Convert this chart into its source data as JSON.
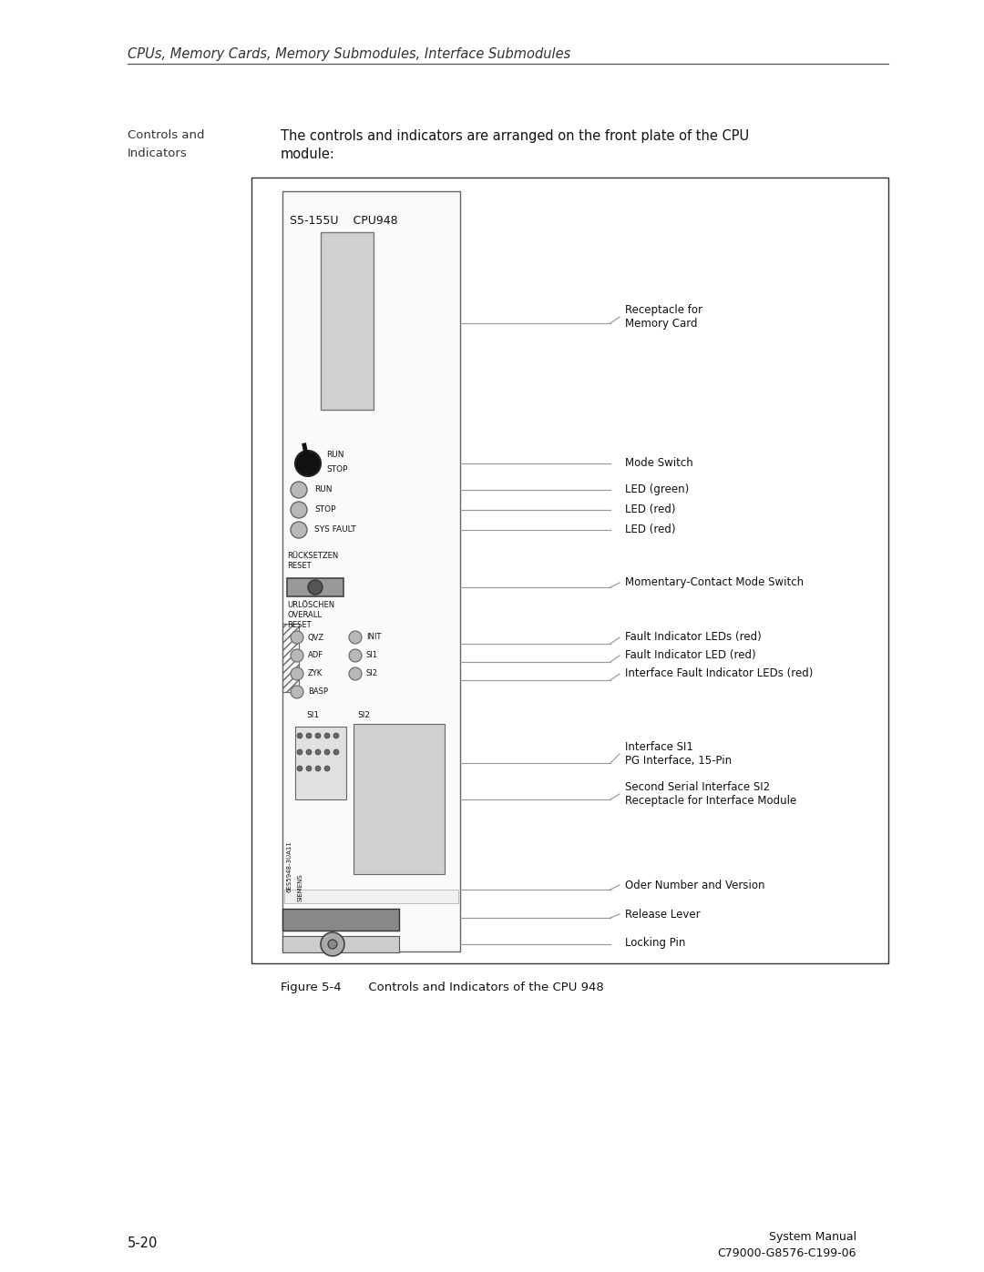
{
  "page_title": "CPUs, Memory Cards, Memory Submodules, Interface Submodules",
  "header_left_line1": "Controls and",
  "header_left_line2": "Indicators",
  "header_text_line1": "The controls and indicators are arranged on the front plate of the CPU",
  "header_text_line2": "module:",
  "cpu_label": "S5-155U    CPU948",
  "figure_caption": "Figure 5-4       Controls and Indicators of the CPU 948",
  "footer_left": "5-20",
  "footer_right_line1": "System Manual",
  "footer_right_line2": "C79000-G8576-C199-06",
  "bg_color": "#ffffff"
}
